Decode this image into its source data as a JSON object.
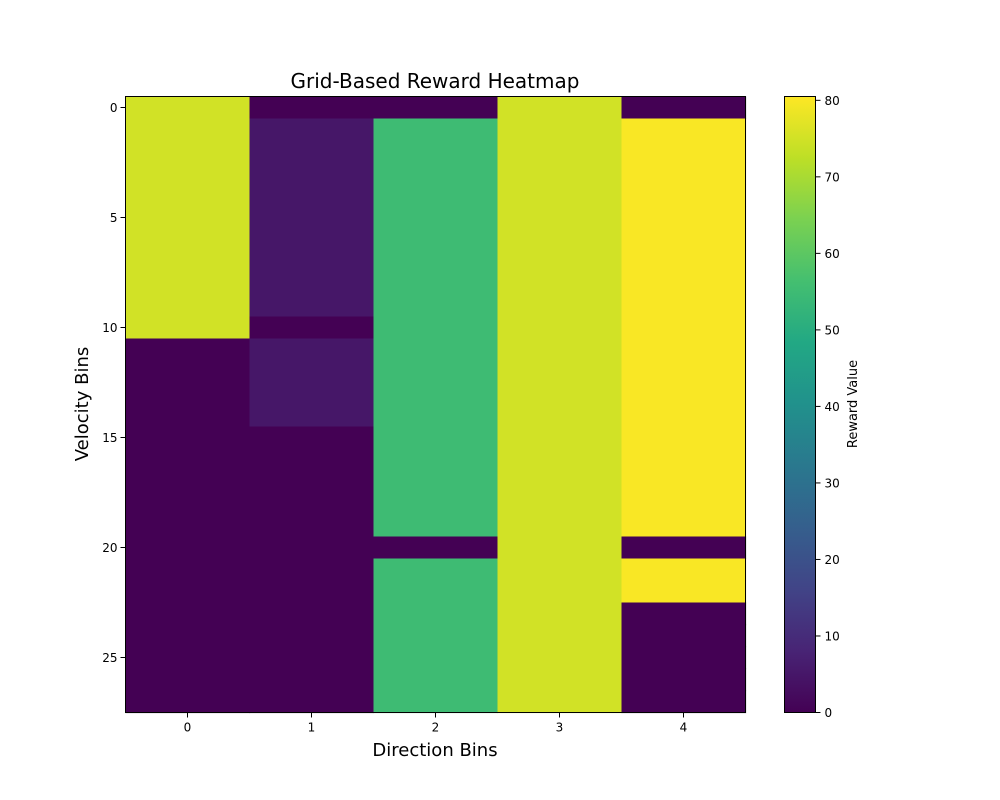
{
  "chart_data": {
    "type": "heatmap",
    "title": "Grid-Based Reward Heatmap",
    "xlabel": "Direction Bins",
    "ylabel": "Velocity Bins",
    "colorbar_label": "Reward Value",
    "colormap": "viridis",
    "x_categories": [
      0,
      1,
      2,
      3,
      4
    ],
    "y_categories": [
      0,
      1,
      2,
      3,
      4,
      5,
      6,
      7,
      8,
      9,
      10,
      11,
      12,
      13,
      14,
      15,
      16,
      17,
      18,
      19,
      20,
      21,
      22,
      23,
      24,
      25,
      26,
      27
    ],
    "x_tick_labels": [
      "0",
      "1",
      "2",
      "3",
      "4"
    ],
    "y_tick_labels": [
      "0",
      "5",
      "10",
      "15",
      "20",
      "25"
    ],
    "colorbar_ticks": [
      "0",
      "10",
      "20",
      "30",
      "40",
      "50",
      "60",
      "70",
      "80"
    ],
    "value_range": [
      0,
      80.5
    ],
    "grid": false,
    "columns": [
      {
        "x": 0,
        "values": [
          75,
          75,
          75,
          75,
          75,
          75,
          75,
          75,
          75,
          75,
          75,
          0,
          0,
          0,
          0,
          0,
          0,
          0,
          0,
          0,
          0,
          0,
          0,
          0,
          0,
          0,
          0,
          0
        ]
      },
      {
        "x": 1,
        "values": [
          0,
          5,
          5,
          5,
          5,
          5,
          5,
          5,
          5,
          5,
          0,
          5,
          5,
          5,
          5,
          0,
          0,
          0,
          0,
          0,
          0,
          0,
          0,
          0,
          0,
          0,
          0,
          0
        ]
      },
      {
        "x": 2,
        "values": [
          0,
          55,
          55,
          55,
          55,
          55,
          55,
          55,
          55,
          55,
          55,
          55,
          55,
          55,
          55,
          55,
          55,
          55,
          55,
          55,
          0,
          55,
          55,
          55,
          55,
          55,
          55,
          55
        ]
      },
      {
        "x": 3,
        "values": [
          75,
          75,
          75,
          75,
          75,
          75,
          75,
          75,
          75,
          75,
          75,
          75,
          75,
          75,
          75,
          75,
          75,
          75,
          75,
          75,
          75,
          75,
          75,
          75,
          75,
          75,
          75,
          75
        ]
      },
      {
        "x": 4,
        "values": [
          0,
          80,
          80,
          80,
          80,
          80,
          80,
          80,
          80,
          80,
          80,
          80,
          80,
          80,
          80,
          80,
          80,
          80,
          80,
          80,
          0,
          80,
          80,
          0,
          0,
          0,
          0,
          0
        ]
      }
    ]
  }
}
